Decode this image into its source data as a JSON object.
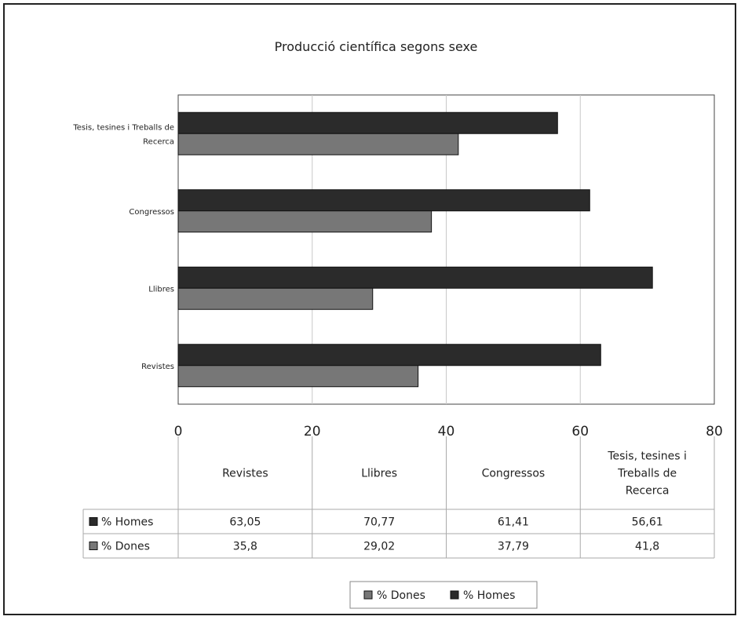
{
  "chart_data": {
    "type": "bar",
    "orientation": "horizontal",
    "title": "Producció científica segons sexe",
    "categories": [
      "Revistes",
      "Llibres",
      "Congressos",
      "Tesis, tesines i Treballs de Recerca"
    ],
    "category_axis_lines": [
      [
        "Revistes"
      ],
      [
        "Llibres"
      ],
      [
        "Congressos"
      ],
      [
        "Tesis, tesines i Treballs de",
        "Recerca"
      ]
    ],
    "table_header_lines": [
      [
        "Revistes"
      ],
      [
        "Llibres"
      ],
      [
        "Congressos"
      ],
      [
        "Tesis, tesines i",
        "Treballs de",
        "Recerca"
      ]
    ],
    "series": [
      {
        "name": "% Homes",
        "values": [
          63.05,
          70.77,
          61.41,
          56.61
        ],
        "labels": [
          "63,05",
          "70,77",
          "61,41",
          "56,61"
        ],
        "color": "#2b2b2b"
      },
      {
        "name": "% Dones",
        "values": [
          35.8,
          29.02,
          37.79,
          41.8
        ],
        "labels": [
          "35,8",
          "29,02",
          "37,79",
          "41,8"
        ],
        "color": "#777777"
      }
    ],
    "xlim": [
      0,
      80
    ],
    "xticks": [
      "0",
      "20",
      "40",
      "60",
      "80"
    ],
    "grid": true,
    "legend": {
      "placement": "bottom",
      "entries": [
        "% Dones",
        "% Homes"
      ]
    },
    "data_table": true
  }
}
